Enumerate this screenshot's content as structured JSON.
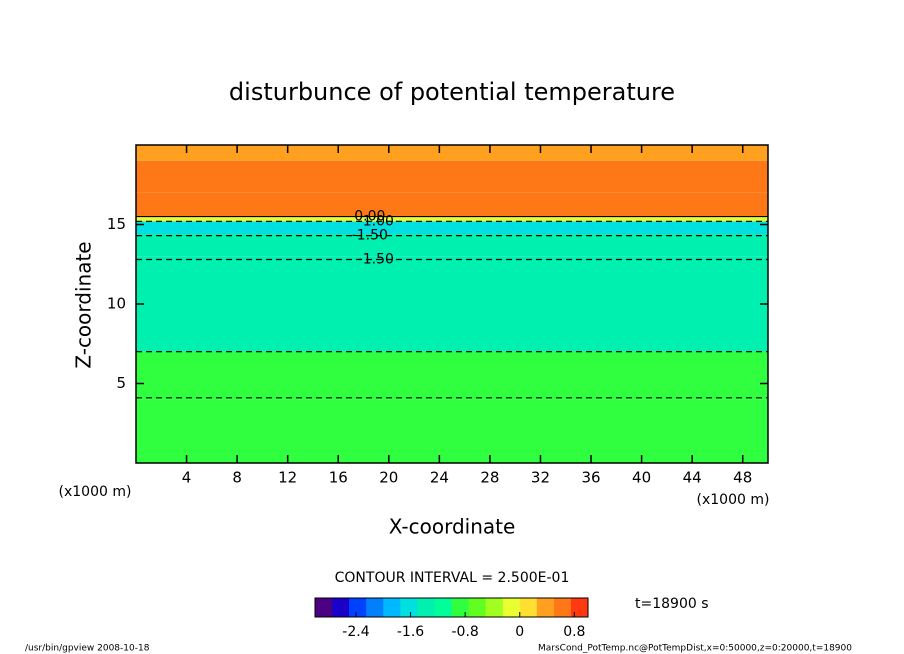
{
  "chart_data": {
    "type": "contour",
    "title": "disturbunce of potential temperature",
    "x_label": "X-coordinate",
    "y_label": "Z-coordinate",
    "x_unit": "(x1000 m)",
    "y_unit": "(x1000 m)",
    "xlim": [
      0,
      50
    ],
    "xticks": [
      4,
      8,
      12,
      16,
      20,
      24,
      28,
      32,
      36,
      40,
      44,
      48
    ],
    "ylim": [
      0,
      20
    ],
    "yticks": [
      5,
      10,
      15
    ],
    "layers": [
      {
        "z": [
          0,
          4
        ],
        "value": -0.9
      },
      {
        "z": [
          4,
          7
        ],
        "value": -1.0
      },
      {
        "z": [
          7,
          13
        ],
        "value": -1.3
      },
      {
        "z": [
          13,
          14.4
        ],
        "value": -1.4
      },
      {
        "z": [
          14.4,
          15.2
        ],
        "value": -1.6
      },
      {
        "z": [
          15.2,
          15.5
        ],
        "value": -0.1
      },
      {
        "z": [
          15.5,
          17
        ],
        "value": 0.6
      },
      {
        "z": [
          17,
          19
        ],
        "value": 0.5
      },
      {
        "z": [
          19,
          20
        ],
        "value": 0.4
      }
    ],
    "contours": [
      {
        "value": 0,
        "label": "0.00",
        "z": 15.5
      },
      {
        "value": -1.0,
        "label": "-1.00",
        "z": 15.2
      },
      {
        "value": -1.5,
        "label": "-1.50",
        "z": 14.3
      },
      {
        "value": -1.5,
        "label": "-1.50",
        "z": 12.8
      },
      {
        "value": -1.0,
        "z": 7.0
      },
      {
        "value": -1.0,
        "z": 4.1
      }
    ],
    "contour_interval_text": "CONTOUR INTERVAL = 2.500E-01",
    "time_text": "t=18900 s",
    "colorbar": {
      "clim": [
        -3,
        1
      ],
      "colors": [
        "#4b0082",
        "#1a00c8",
        "#0040ff",
        "#0080ff",
        "#00b8ff",
        "#00e0e0",
        "#00f0b0",
        "#00ff98",
        "#30ff40",
        "#60ff20",
        "#a0ff20",
        "#e8ff30",
        "#ffe030",
        "#ffa020",
        "#ff7818",
        "#ff3a10"
      ],
      "ticks": [
        -2.4,
        -1.6,
        -0.8,
        0,
        0.8
      ]
    },
    "footer_left": "/usr/bin/gpview   2008-10-18",
    "footer_right": "MarsCond_PotTemp.nc@PotTempDist,x=0:50000,z=0:20000,t=18900"
  }
}
